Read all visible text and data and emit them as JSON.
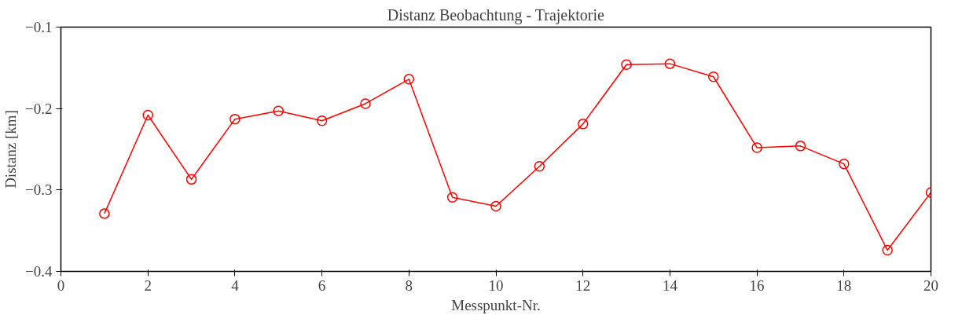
{
  "chart_data": {
    "type": "line",
    "title": "Distanz Beobachtung - Trajektorie",
    "xlabel": "Messpunkt-Nr.",
    "ylabel": "Distanz [km]",
    "x": [
      1,
      2,
      3,
      4,
      5,
      6,
      7,
      8,
      9,
      10,
      11,
      12,
      13,
      14,
      15,
      16,
      17,
      18,
      19,
      20
    ],
    "series": [
      {
        "color": "#ff0000",
        "values": [
          -0.329,
          -0.208,
          -0.287,
          -0.213,
          -0.203,
          -0.215,
          -0.194,
          -0.164,
          -0.309,
          -0.32,
          -0.271,
          -0.219,
          -0.146,
          -0.145,
          -0.161,
          -0.248,
          -0.246,
          -0.268,
          -0.374,
          -0.303
        ]
      }
    ],
    "xlim": [
      0,
      20
    ],
    "ylim": [
      -0.4,
      -0.1
    ],
    "xticks": [
      0,
      2,
      4,
      6,
      8,
      10,
      12,
      14,
      16,
      18,
      20
    ],
    "yticks": [
      {
        "value": -0.4,
        "label": "−0.4"
      },
      {
        "value": -0.3,
        "label": "−0.3"
      },
      {
        "value": -0.2,
        "label": "−0.2"
      },
      {
        "value": -0.1,
        "label": "−0.1"
      }
    ],
    "grid": false,
    "marker": "circle",
    "line_style": "solid"
  }
}
